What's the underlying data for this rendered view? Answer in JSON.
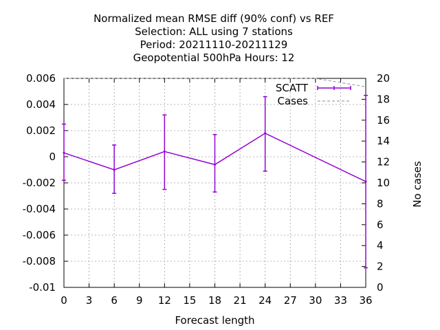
{
  "chart_data": {
    "type": "line",
    "title_lines": [
      "Normalized mean RMSE diff (90% conf) vs REF",
      "Selection: ALL using     7 stations",
      "Period: 20211110-20211129",
      "Geopotential 500hPa   Hours:  12"
    ],
    "xlabel": "Forecast length",
    "ylabel": "",
    "y2label": "No cases",
    "xlim": [
      0,
      36
    ],
    "ylim": [
      -0.01,
      0.006
    ],
    "y2lim": [
      0,
      20
    ],
    "x_ticks": [
      "0",
      "3",
      "6",
      "9",
      "12",
      "15",
      "18",
      "21",
      "24",
      "27",
      "30",
      "33",
      "36"
    ],
    "y_ticks": [
      "0.006",
      "0.004",
      "0.002",
      "0",
      "-0.002",
      "-0.004",
      "-0.006",
      "-0.008",
      "-0.01"
    ],
    "y2_ticks": [
      "20",
      "18",
      "16",
      "14",
      "12",
      "10",
      "8",
      "6",
      "4",
      "2",
      "0"
    ],
    "grid": true,
    "series": [
      {
        "name": "SCATT",
        "color": "#9400d3",
        "x": [
          0,
          6,
          12,
          18,
          24,
          36
        ],
        "y": [
          0.0003,
          -0.001,
          0.0004,
          -0.0006,
          0.0018,
          -0.0019
        ],
        "err_low": [
          -0.0018,
          -0.0028,
          -0.0025,
          -0.0027,
          -0.0011,
          -0.0085
        ],
        "err_high": [
          0.0025,
          0.0009,
          0.0032,
          0.0017,
          0.0046,
          0.0047
        ]
      },
      {
        "name": "Cases",
        "color": "#a0a0a0",
        "axis": "y2",
        "x": [
          0,
          6,
          12,
          18,
          24,
          30,
          36
        ],
        "y": [
          20,
          20,
          20,
          20,
          20,
          20,
          19.2
        ]
      }
    ],
    "legend_position": "top-right"
  }
}
